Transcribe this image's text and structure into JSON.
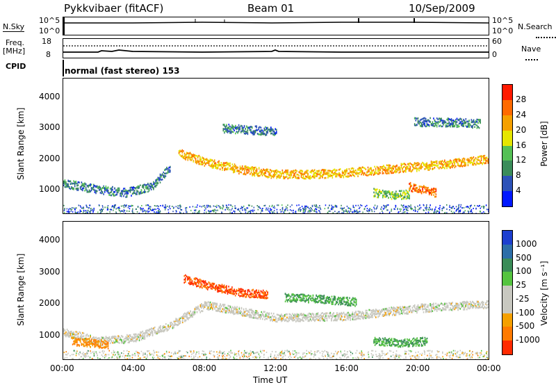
{
  "header": {
    "title": "Pykkvibaer (fitACF)",
    "beam": "Beam 01",
    "date": "10/Sep/2009"
  },
  "noise_panel": {
    "left_label": "N.Sky",
    "right_label": "N.Search",
    "left_ticks": [
      "10^5",
      "10^0"
    ],
    "right_ticks": [
      "10^5",
      "10^0"
    ]
  },
  "freq_panel": {
    "left_label_1": "Freq.",
    "left_label_2": "[MHz]",
    "right_label": "Nave",
    "left_ticks": [
      "18",
      "8"
    ],
    "right_ticks": [
      "60",
      "0"
    ]
  },
  "cpid": {
    "label": "CPID",
    "mode": "normal (fast stereo) 153"
  },
  "x_axis": {
    "label": "Time UT",
    "ticks": [
      "00:00",
      "04:00",
      "08:00",
      "12:00",
      "16:00",
      "20:00",
      "00:00"
    ]
  },
  "power_panel": {
    "ylabel": "Slant Range [km]",
    "yticks": [
      "1000",
      "2000",
      "3000",
      "4000"
    ],
    "colorbar_label": "Power [dB]",
    "colorbar_ticks": [
      "4",
      "8",
      "12",
      "16",
      "20",
      "24",
      "28"
    ]
  },
  "velocity_panel": {
    "ylabel": "Slant Range [km]",
    "yticks": [
      "1000",
      "2000",
      "3000",
      "4000"
    ],
    "colorbar_label": "Velocity [m s⁻¹]",
    "colorbar_ticks": [
      "1000",
      "500",
      "100",
      "25",
      "-25",
      "-100",
      "-500",
      "-1000"
    ]
  },
  "colors": {
    "power_scale": [
      "#0018ff",
      "#2c52b8",
      "#3a8c5a",
      "#55c055",
      "#e6e600",
      "#f5a000",
      "#ff6a00",
      "#ff1a00"
    ],
    "velocity_scale": [
      "#1d3fcf",
      "#2d6ea8",
      "#3a8c58",
      "#55c440",
      "#c8c8c0",
      "#c8c8c0",
      "#f5a000",
      "#ff7a00",
      "#ff2a00"
    ]
  },
  "chart_data": [
    {
      "type": "heatmap",
      "title": "",
      "xlabel": "Time UT",
      "ylabel": "Slant Range [km]",
      "x_range_hours": [
        0,
        24
      ],
      "y_range_km": [
        200,
        4600
      ],
      "quantity": "Power [dB]",
      "colorbar_range": [
        0,
        30
      ],
      "features": [
        {
          "name": "",
          "x": [
            0,
            2,
            3.5,
            5,
            6
          ],
          "y": [
            1200,
            1000,
            900,
            1100,
            1700
          ],
          "value": 8
        },
        {
          "name": "",
          "x": [
            6.5,
            8,
            10,
            12,
            14,
            16,
            18,
            20,
            22,
            24
          ],
          "y": [
            2200,
            1900,
            1650,
            1500,
            1500,
            1550,
            1650,
            1750,
            1850,
            2000
          ],
          "value": 20
        },
        {
          "name": "",
          "x": [
            17.5,
            18.5,
            19.5
          ],
          "y": [
            900,
            800,
            850
          ],
          "value": 14
        },
        {
          "name": "",
          "x": [
            19.5,
            20.3,
            21
          ],
          "y": [
            1100,
            1000,
            900
          ],
          "value": 24
        },
        {
          "name": "",
          "x": [
            19.8,
            21.5,
            23.5
          ],
          "y": [
            3200,
            3200,
            3150
          ],
          "value": 8
        },
        {
          "name": "",
          "x": [
            9,
            10.5,
            12
          ],
          "y": [
            3000,
            2950,
            2900
          ],
          "value": 8
        }
      ]
    },
    {
      "type": "heatmap",
      "title": "",
      "xlabel": "Time UT",
      "ylabel": "Slant Range [km]",
      "x_range_hours": [
        0,
        24
      ],
      "y_range_km": [
        200,
        4600
      ],
      "quantity": "Velocity [m s⁻¹]",
      "colorbar_range": [
        -1000,
        1000
      ],
      "features": [
        {
          "name": "",
          "x": [
            0,
            2,
            4,
            6,
            8,
            12,
            16,
            20,
            24
          ],
          "y": [
            1100,
            800,
            900,
            1300,
            1950,
            1550,
            1600,
            1850,
            2000
          ],
          "value": 0
        },
        {
          "name": "",
          "x": [
            6.8,
            8,
            10,
            11.5
          ],
          "y": [
            2800,
            2600,
            2350,
            2300
          ],
          "value": -500
        },
        {
          "name": "",
          "x": [
            12.5,
            14.5,
            16.5
          ],
          "y": [
            2200,
            2150,
            2050
          ],
          "value": 100
        },
        {
          "name": "",
          "x": [
            17.5,
            19,
            20.5
          ],
          "y": [
            800,
            750,
            800
          ],
          "value": 100
        },
        {
          "name": "",
          "x": [
            0.5,
            1.5,
            2.5
          ],
          "y": [
            800,
            750,
            700
          ],
          "value": -100
        }
      ]
    }
  ]
}
